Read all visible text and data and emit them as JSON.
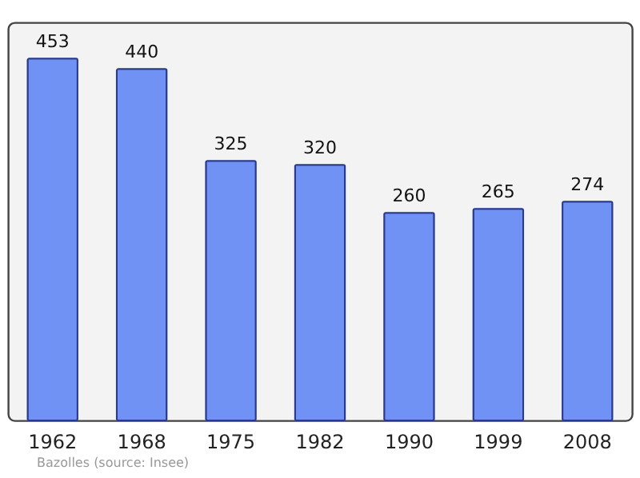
{
  "chart_data": {
    "type": "bar",
    "categories": [
      "1962",
      "1968",
      "1975",
      "1982",
      "1990",
      "1999",
      "2008"
    ],
    "values": [
      453,
      440,
      325,
      320,
      260,
      265,
      274
    ],
    "color": "#7092f5",
    "data_labels": true,
    "annotations": [
      "Bazolles",
      "(source: Insee)"
    ]
  }
}
